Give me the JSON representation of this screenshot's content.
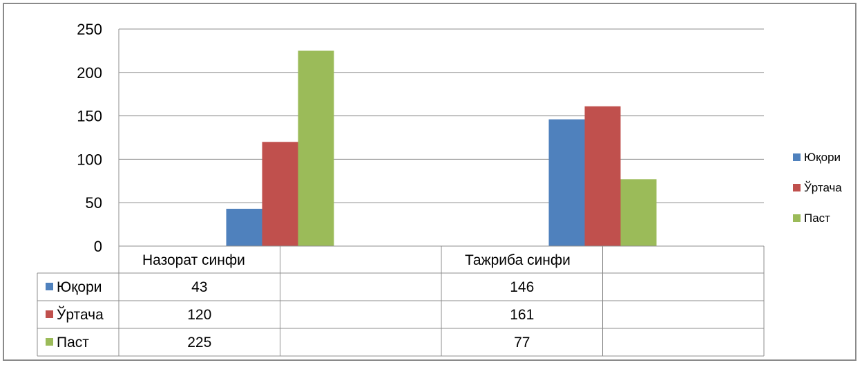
{
  "chart_data": {
    "type": "bar",
    "categories": [
      "Назорат синфи",
      "Тажриба синфи"
    ],
    "series": [
      {
        "name": "Юқори",
        "values": [
          43,
          146
        ],
        "color": "#4F81BD"
      },
      {
        "name": "Ўртача",
        "values": [
          120,
          161
        ],
        "color": "#C0504D"
      },
      {
        "name": "Паст",
        "values": [
          225,
          77
        ],
        "color": "#9BBB59"
      }
    ],
    "ylim": [
      0,
      250
    ],
    "yticks": [
      "0",
      "50",
      "100",
      "150",
      "200",
      "250"
    ],
    "grid": true,
    "legend": "right",
    "data_table": true
  }
}
